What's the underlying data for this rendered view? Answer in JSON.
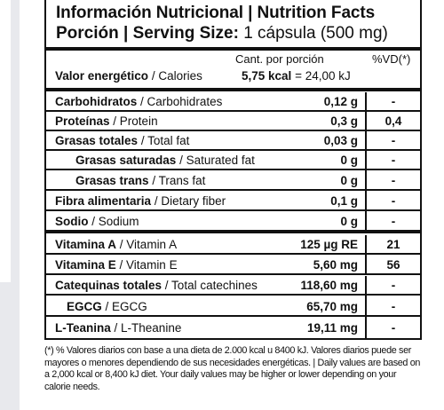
{
  "header": {
    "title": "Información Nutricional | Nutrition Facts",
    "serving_bold": "Porción | Serving Size:",
    "serving_value": "1 cápsula (500 mg)"
  },
  "columns": {
    "amount_per_serving": "Cant. por porción",
    "daily_value": "%VD(*)"
  },
  "energy": {
    "name_bold": "Valor energético",
    "name_en": "/ Calories",
    "value_bold": "5,75 kcal",
    "value_rest": "= 24,00 kJ"
  },
  "rows": [
    {
      "name_bold": "Carbohidratos",
      "name_en": "/ Carbohidrates",
      "amount": "0,12 g",
      "vd": "-"
    },
    {
      "name_bold": "Proteínas",
      "name_en": "/ Protein",
      "amount": "0,3 g",
      "vd": "0,4"
    },
    {
      "name_bold": "Grasas totales",
      "name_en": "/ Total fat",
      "amount": "0,03 g",
      "vd": "-"
    },
    {
      "name_bold": "Grasas saturadas",
      "name_en": "/ Saturated fat",
      "amount": "0 g",
      "vd": "-"
    },
    {
      "name_bold": "Grasas trans",
      "name_en": "/ Trans fat",
      "amount": "0 g",
      "vd": "-"
    },
    {
      "name_bold": "Fibra alimentaria",
      "name_en": "/ Dietary fiber",
      "amount": "0,1 g",
      "vd": "-"
    },
    {
      "name_bold": "Sodio",
      "name_en": "/ Sodium",
      "amount": "0 g",
      "vd": "-"
    },
    {
      "name_bold": "Vitamina A",
      "name_en": "/ Vitamin A",
      "amount": "125 µg RE",
      "vd": "21"
    },
    {
      "name_bold": "Vitamina E",
      "name_en": "/ Vitamin E",
      "amount": "5,60 mg",
      "vd": "56"
    },
    {
      "name_bold": "Catequinas totales",
      "name_en": "/ Total catechines",
      "amount": "118,60 mg",
      "vd": "-"
    },
    {
      "name_bold": "EGCG",
      "name_en": "/ EGCG",
      "amount": "65,70 mg",
      "vd": "-"
    },
    {
      "name_bold": "L-Teanina",
      "name_en": "/ L-Theanine",
      "amount": "19,11 mg",
      "vd": "-"
    }
  ],
  "footnote": "(*) % Valores diarios con base a una dieta de 2.000 kcal u 8400 kJ. Valores diarios puede ser mayores o menores dependiendo de sus necesidades energéticas. | Daily values are based on a 2,000 kcal or 8,400 kJ diet. Your daily values may be higher or lower depending on your calorie needs."
}
